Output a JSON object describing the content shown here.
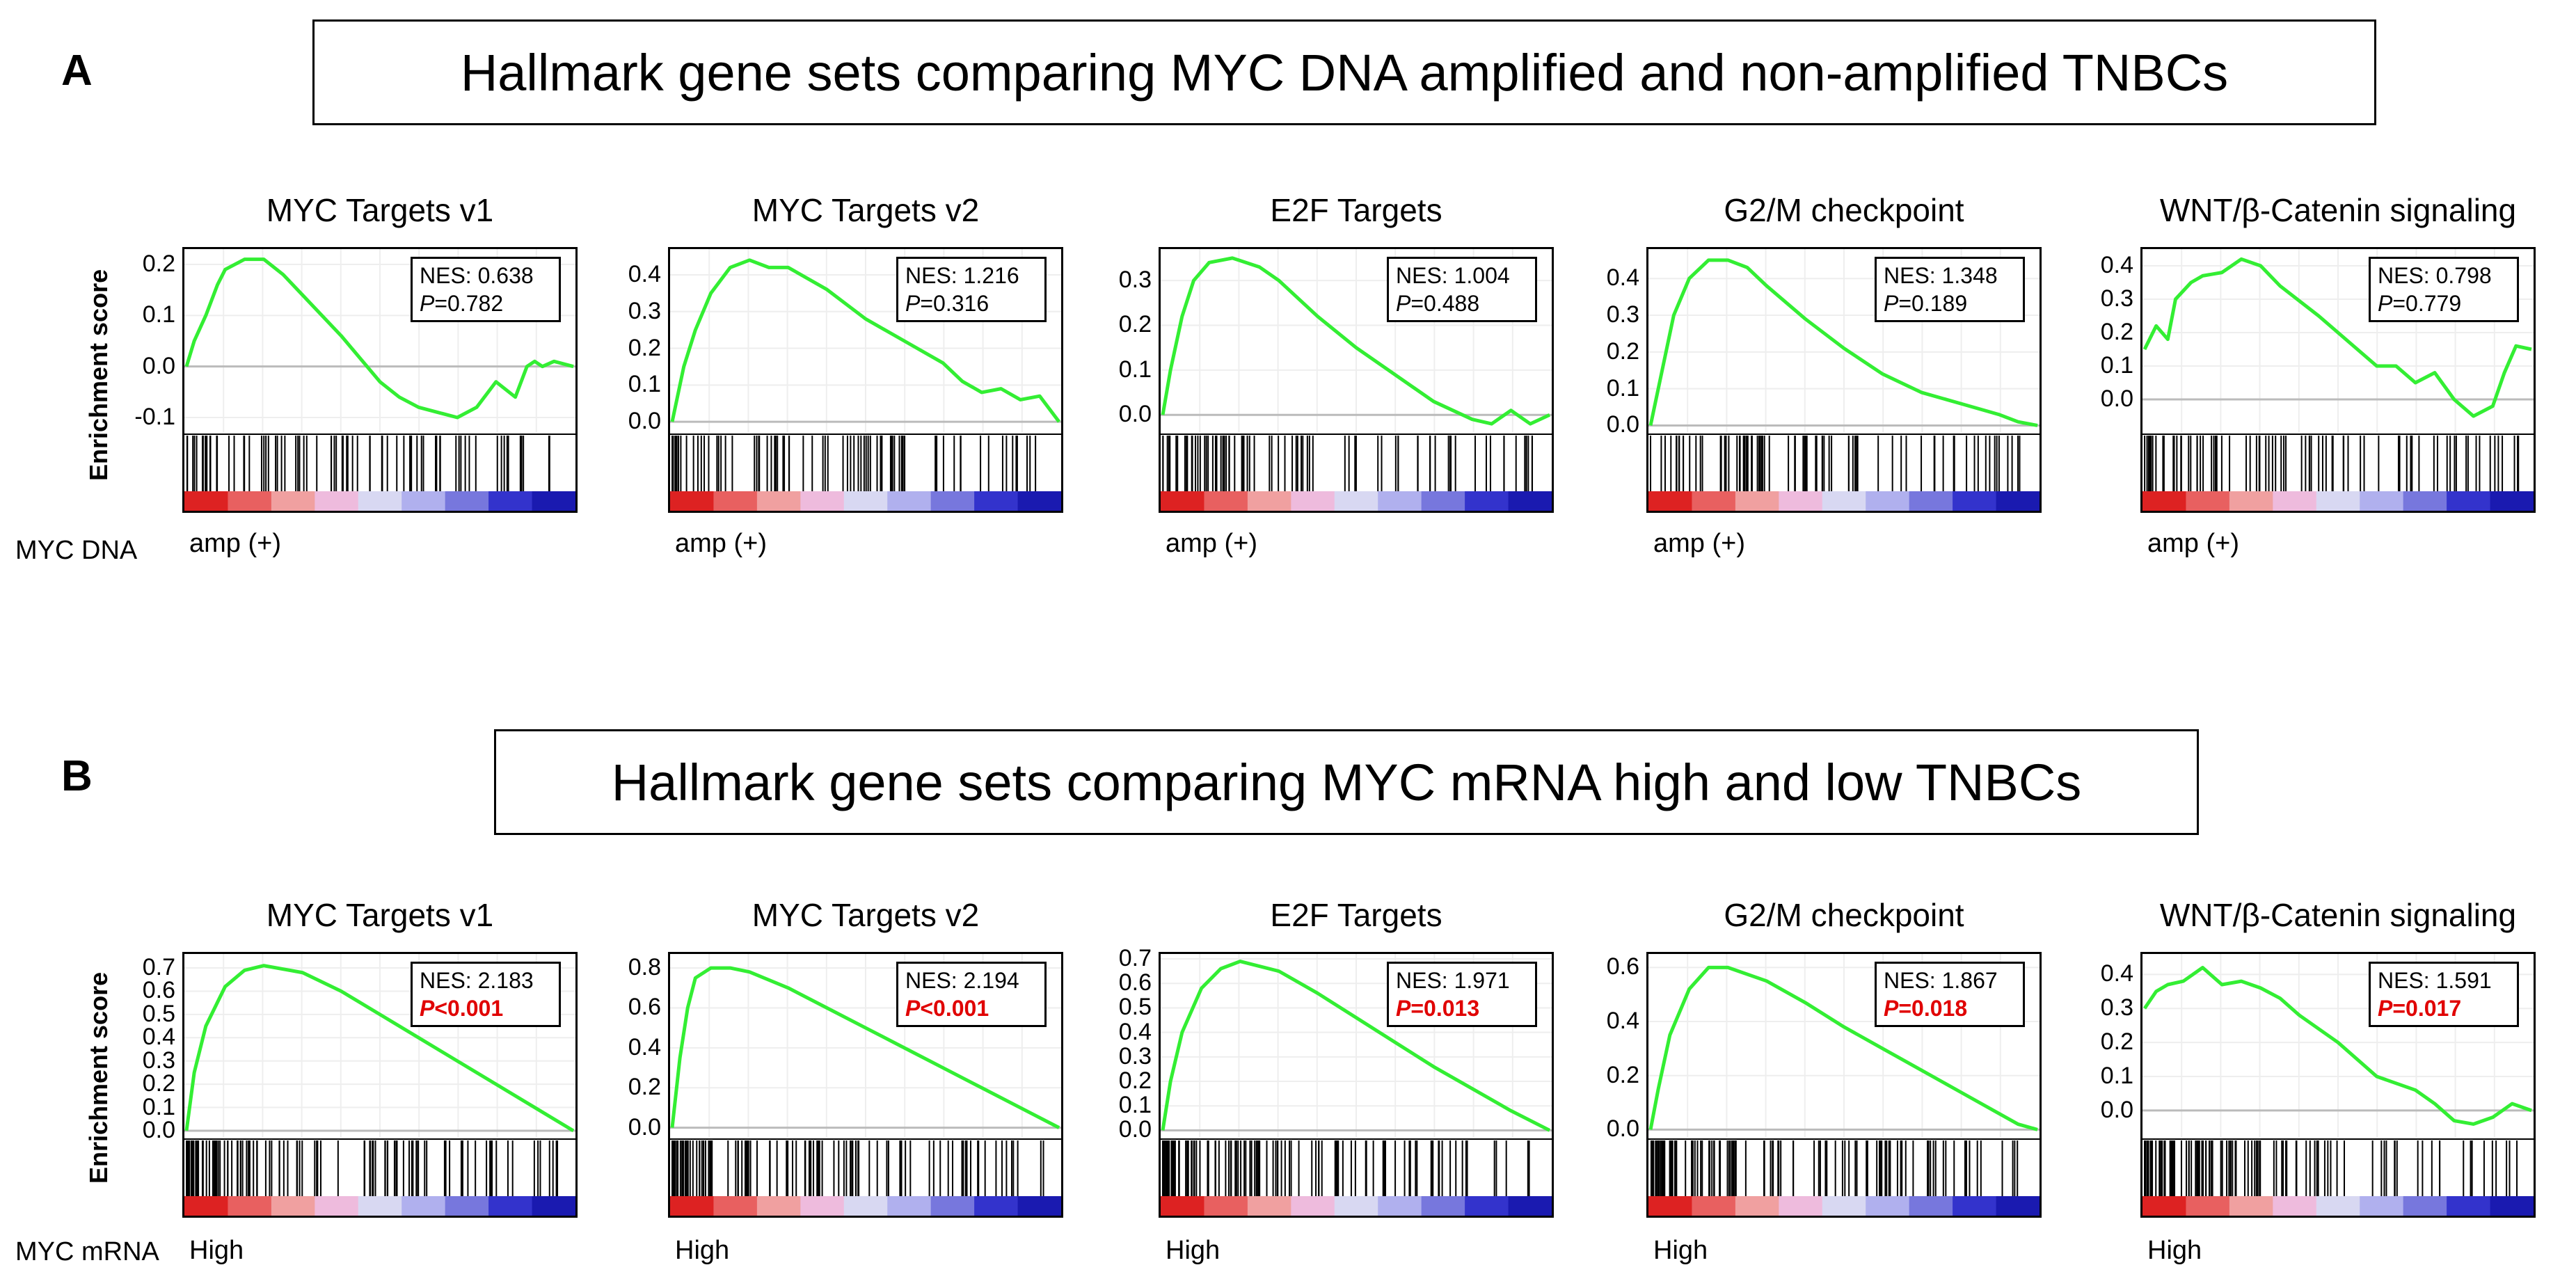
{
  "y_axis_label": "Enrichment score",
  "panels": [
    {
      "letter": "A",
      "title": "Hallmark gene sets comparing MYC DNA amplified and non-amplified TNBCs",
      "row_label": "MYC DNA",
      "group_label": "amp (+)"
    },
    {
      "letter": "B",
      "title": "Hallmark gene sets comparing MYC mRNA high and low TNBCs",
      "row_label": "MYC mRNA",
      "group_label": "High"
    }
  ],
  "chart_data": [
    {
      "type": "line",
      "panel": "A",
      "title": "MYC Targets v1",
      "ylim": [
        -0.13,
        0.23
      ],
      "yticks": [
        0.2,
        0.1,
        0.0,
        -0.1
      ],
      "ytick_labels": [
        "0.2",
        "0.1",
        "0.0",
        "-0.1"
      ],
      "x": [
        0,
        0.02,
        0.05,
        0.08,
        0.1,
        0.15,
        0.2,
        0.25,
        0.3,
        0.4,
        0.5,
        0.55,
        0.6,
        0.65,
        0.7,
        0.75,
        0.8,
        0.85,
        0.88,
        0.9,
        0.92,
        0.95,
        1.0
      ],
      "y": [
        0.0,
        0.05,
        0.1,
        0.16,
        0.19,
        0.21,
        0.21,
        0.18,
        0.14,
        0.06,
        -0.03,
        -0.06,
        -0.08,
        -0.09,
        -0.1,
        -0.08,
        -0.03,
        -0.06,
        0.0,
        0.01,
        0.0,
        0.01,
        0.0
      ],
      "nes": "NES: 0.638",
      "p_prefix": "P",
      "p_rest": "=0.782",
      "significant": false
    },
    {
      "type": "line",
      "panel": "A",
      "title": "MYC Targets v2",
      "ylim": [
        -0.03,
        0.47
      ],
      "yticks": [
        0.4,
        0.3,
        0.2,
        0.1,
        0.0
      ],
      "ytick_labels": [
        "0.4",
        "0.3",
        "0.2",
        "0.1",
        "0.0"
      ],
      "x": [
        0,
        0.03,
        0.06,
        0.1,
        0.15,
        0.2,
        0.25,
        0.3,
        0.4,
        0.5,
        0.6,
        0.7,
        0.75,
        0.8,
        0.85,
        0.9,
        0.95,
        1.0
      ],
      "y": [
        0.0,
        0.15,
        0.25,
        0.35,
        0.42,
        0.44,
        0.42,
        0.42,
        0.36,
        0.28,
        0.22,
        0.16,
        0.11,
        0.08,
        0.09,
        0.06,
        0.07,
        0.0
      ],
      "nes": "NES: 1.216",
      "p_prefix": "P",
      "p_rest": "=0.316",
      "significant": false
    },
    {
      "type": "line",
      "panel": "A",
      "title": "E2F Targets",
      "ylim": [
        -0.04,
        0.37
      ],
      "yticks": [
        0.3,
        0.2,
        0.1,
        0.0
      ],
      "ytick_labels": [
        "0.3",
        "0.2",
        "0.1",
        "0.0"
      ],
      "x": [
        0,
        0.02,
        0.05,
        0.08,
        0.12,
        0.18,
        0.25,
        0.3,
        0.4,
        0.5,
        0.6,
        0.7,
        0.8,
        0.85,
        0.9,
        0.95,
        1.0
      ],
      "y": [
        0.0,
        0.1,
        0.22,
        0.3,
        0.34,
        0.35,
        0.33,
        0.3,
        0.22,
        0.15,
        0.09,
        0.03,
        -0.01,
        -0.02,
        0.01,
        -0.02,
        0.0
      ],
      "nes": "NES: 1.004",
      "p_prefix": "P",
      "p_rest": "=0.488",
      "significant": false
    },
    {
      "type": "line",
      "panel": "A",
      "title": "G2/M checkpoint",
      "ylim": [
        -0.02,
        0.48
      ],
      "yticks": [
        0.4,
        0.3,
        0.2,
        0.1,
        0.0
      ],
      "ytick_labels": [
        "0.4",
        "0.3",
        "0.2",
        "0.1",
        "0.0"
      ],
      "x": [
        0,
        0.03,
        0.06,
        0.1,
        0.15,
        0.2,
        0.25,
        0.3,
        0.4,
        0.5,
        0.6,
        0.7,
        0.8,
        0.9,
        0.95,
        1.0
      ],
      "y": [
        0.0,
        0.15,
        0.3,
        0.4,
        0.45,
        0.45,
        0.43,
        0.38,
        0.29,
        0.21,
        0.14,
        0.09,
        0.06,
        0.03,
        0.01,
        0.0
      ],
      "nes": "NES: 1.348",
      "p_prefix": "P",
      "p_rest": "=0.189",
      "significant": false
    },
    {
      "type": "line",
      "panel": "A",
      "title": "WNT/β-Catenin signaling",
      "ylim": [
        -0.1,
        0.45
      ],
      "yticks": [
        0.4,
        0.3,
        0.2,
        0.1,
        0.0
      ],
      "ytick_labels": [
        "0.4",
        "0.3",
        "0.2",
        "0.1",
        "0.0"
      ],
      "x": [
        0,
        0.03,
        0.06,
        0.08,
        0.12,
        0.15,
        0.2,
        0.25,
        0.3,
        0.35,
        0.45,
        0.55,
        0.6,
        0.65,
        0.7,
        0.75,
        0.8,
        0.85,
        0.9,
        0.93,
        0.96,
        1.0
      ],
      "y": [
        0.15,
        0.22,
        0.18,
        0.3,
        0.35,
        0.37,
        0.38,
        0.42,
        0.4,
        0.34,
        0.25,
        0.15,
        0.1,
        0.1,
        0.05,
        0.08,
        0.0,
        -0.05,
        -0.02,
        0.08,
        0.16,
        0.15
      ],
      "nes": "NES: 0.798",
      "p_prefix": "P",
      "p_rest": "=0.779",
      "significant": false
    },
    {
      "type": "line",
      "panel": "B",
      "title": "MYC Targets v1",
      "ylim": [
        -0.03,
        0.76
      ],
      "yticks": [
        0.7,
        0.6,
        0.5,
        0.4,
        0.3,
        0.2,
        0.1,
        0.0
      ],
      "ytick_labels": [
        "0.7",
        "0.6",
        "0.5",
        "0.4",
        "0.3",
        "0.2",
        "0.1",
        "0.0"
      ],
      "x": [
        0,
        0.02,
        0.05,
        0.1,
        0.15,
        0.2,
        0.3,
        0.4,
        0.5,
        0.6,
        0.7,
        0.8,
        0.9,
        1.0
      ],
      "y": [
        0.0,
        0.25,
        0.45,
        0.62,
        0.69,
        0.71,
        0.68,
        0.6,
        0.5,
        0.4,
        0.3,
        0.2,
        0.1,
        0.0
      ],
      "nes": "NES: 2.183",
      "p_prefix": "P",
      "p_rest": "<0.001",
      "significant": true
    },
    {
      "type": "line",
      "panel": "B",
      "title": "MYC Targets v2",
      "ylim": [
        -0.05,
        0.87
      ],
      "yticks": [
        0.8,
        0.6,
        0.4,
        0.2,
        0.0
      ],
      "ytick_labels": [
        "0.8",
        "0.6",
        "0.4",
        "0.2",
        "0.0"
      ],
      "x": [
        0,
        0.02,
        0.04,
        0.06,
        0.1,
        0.15,
        0.2,
        0.3,
        0.4,
        0.5,
        0.6,
        0.7,
        0.8,
        0.9,
        1.0
      ],
      "y": [
        0.0,
        0.35,
        0.6,
        0.75,
        0.8,
        0.8,
        0.78,
        0.7,
        0.6,
        0.5,
        0.4,
        0.3,
        0.2,
        0.1,
        0.0
      ],
      "nes": "NES: 2.194",
      "p_prefix": "P",
      "p_rest": "<0.001",
      "significant": true
    },
    {
      "type": "line",
      "panel": "B",
      "title": "E2F Targets",
      "ylim": [
        -0.03,
        0.72
      ],
      "yticks": [
        0.7,
        0.6,
        0.5,
        0.4,
        0.3,
        0.2,
        0.1,
        0.0
      ],
      "ytick_labels": [
        "0.7",
        "0.6",
        "0.5",
        "0.4",
        "0.3",
        "0.2",
        "0.1",
        "0.0"
      ],
      "x": [
        0,
        0.02,
        0.05,
        0.1,
        0.15,
        0.2,
        0.3,
        0.4,
        0.5,
        0.6,
        0.7,
        0.8,
        0.9,
        1.0
      ],
      "y": [
        0.0,
        0.2,
        0.4,
        0.58,
        0.66,
        0.69,
        0.65,
        0.56,
        0.46,
        0.36,
        0.26,
        0.17,
        0.08,
        0.0
      ],
      "nes": "NES: 1.971",
      "p_prefix": "P",
      "p_rest": "=0.013",
      "significant": true
    },
    {
      "type": "line",
      "panel": "B",
      "title": "G2/M checkpoint",
      "ylim": [
        -0.03,
        0.65
      ],
      "yticks": [
        0.6,
        0.4,
        0.2,
        0.0
      ],
      "ytick_labels": [
        "0.6",
        "0.4",
        "0.2",
        "0.0"
      ],
      "x": [
        0,
        0.02,
        0.05,
        0.1,
        0.15,
        0.2,
        0.3,
        0.4,
        0.5,
        0.6,
        0.7,
        0.8,
        0.9,
        0.95,
        1.0
      ],
      "y": [
        0.0,
        0.15,
        0.35,
        0.52,
        0.6,
        0.6,
        0.55,
        0.47,
        0.38,
        0.3,
        0.22,
        0.14,
        0.06,
        0.02,
        0.0
      ],
      "nes": "NES: 1.867",
      "p_prefix": "P",
      "p_rest": "=0.018",
      "significant": true
    },
    {
      "type": "line",
      "panel": "B",
      "title": "WNT/β-Catenin signaling",
      "ylim": [
        -0.08,
        0.46
      ],
      "yticks": [
        0.4,
        0.3,
        0.2,
        0.1,
        0.0
      ],
      "ytick_labels": [
        "0.4",
        "0.3",
        "0.2",
        "0.1",
        "0.0"
      ],
      "x": [
        0,
        0.03,
        0.06,
        0.1,
        0.15,
        0.2,
        0.25,
        0.3,
        0.35,
        0.4,
        0.5,
        0.6,
        0.7,
        0.75,
        0.8,
        0.85,
        0.9,
        0.95,
        1.0
      ],
      "y": [
        0.3,
        0.35,
        0.37,
        0.38,
        0.42,
        0.37,
        0.38,
        0.36,
        0.33,
        0.28,
        0.2,
        0.1,
        0.06,
        0.02,
        -0.03,
        -0.04,
        -0.02,
        0.02,
        0.0
      ],
      "nes": "NES: 1.591",
      "p_prefix": "P",
      "p_rest": "=0.017",
      "significant": true
    }
  ],
  "colors": {
    "es_line": "#33ee33",
    "zero_line": "#bbbbbb",
    "grid": "#eeeeee",
    "hit": "#000000",
    "significant": "#e00000",
    "ranked_gradient": [
      "#dd2222",
      "#e86060",
      "#f0a0a0",
      "#eebbdd",
      "#d8d8f2",
      "#b0b0ee",
      "#7777dd",
      "#3333cc",
      "#1a1ab0"
    ]
  }
}
